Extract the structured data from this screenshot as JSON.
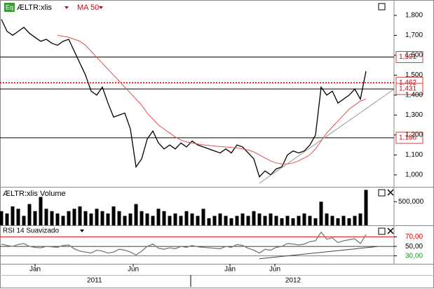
{
  "chart_data": [
    {
      "type": "line",
      "x": [
        0,
        1,
        2,
        3,
        4,
        5,
        6,
        7,
        8,
        9,
        10,
        11,
        12,
        13,
        14,
        15,
        16,
        17,
        18,
        19,
        20,
        21,
        22,
        23,
        24,
        25,
        26,
        27,
        28,
        29,
        30,
        31,
        32,
        33,
        34,
        35,
        36,
        37,
        38,
        39,
        40,
        41,
        42,
        43,
        44,
        45,
        46,
        47,
        48,
        49,
        50,
        51,
        52,
        53,
        54,
        55,
        56,
        57,
        58,
        59,
        60,
        61,
        62,
        63,
        64,
        65
      ],
      "xlim": [
        0,
        70
      ],
      "series": [
        {
          "name": "ÆLTR:xlis",
          "color": "#000000",
          "values": [
            1780,
            1720,
            1700,
            1720,
            1740,
            1710,
            1690,
            1670,
            1680,
            1660,
            1650,
            1670,
            1680,
            1620,
            1560,
            1500,
            1420,
            1400,
            1440,
            1360,
            1290,
            1300,
            1310,
            1230,
            1040,
            1080,
            1180,
            1220,
            1160,
            1130,
            1150,
            1130,
            1160,
            1140,
            1170,
            1150,
            1140,
            1130,
            1120,
            1110,
            1130,
            1110,
            1150,
            1140,
            1110,
            1080,
            990,
            1020,
            1000,
            1030,
            1040,
            1100,
            1120,
            1110,
            1120,
            1150,
            1200,
            1440,
            1400,
            1420,
            1360,
            1380,
            1400,
            1430,
            1380,
            1520
          ]
        },
        {
          "name": "MA 50",
          "color": "#e05050",
          "values": [
            null,
            null,
            null,
            null,
            null,
            null,
            null,
            null,
            null,
            null,
            1700,
            1695,
            1690,
            1680,
            1670,
            1650,
            1620,
            1590,
            1560,
            1530,
            1500,
            1470,
            1440,
            1410,
            1380,
            1350,
            1310,
            1280,
            1250,
            1230,
            1210,
            1190,
            1175,
            1165,
            1160,
            1155,
            1150,
            1148,
            1145,
            1142,
            1140,
            1138,
            1135,
            1130,
            1125,
            1115,
            1100,
            1085,
            1070,
            1060,
            1055,
            1055,
            1060,
            1070,
            1085,
            1100,
            1130,
            1170,
            1210,
            1240,
            1270,
            1300,
            1330,
            1350,
            1370,
            1380
          ]
        }
      ],
      "ylim": [
        940,
        1870
      ],
      "yticks": [
        {
          "value": 1000,
          "label": "1,000"
        },
        {
          "value": 1100,
          "label": "1,100"
        },
        {
          "value": 1200,
          "label": "1,200"
        },
        {
          "value": 1300,
          "label": "1,300"
        },
        {
          "value": 1400,
          "label": "1,400"
        },
        {
          "value": 1500,
          "label": "1,500"
        },
        {
          "value": 1600,
          "label": "1,600"
        },
        {
          "value": 1700,
          "label": "1,700"
        },
        {
          "value": 1800,
          "label": "1,800"
        }
      ],
      "levels": [
        {
          "value": 1591,
          "label": "1,591",
          "color": "#000000",
          "style": "solid"
        },
        {
          "value": 1462,
          "label": "1,462",
          "color": "#dd0000",
          "style": "dotted"
        },
        {
          "value": 1431,
          "label": "1,431",
          "color": "#000000",
          "style": "solid"
        },
        {
          "value": 1186,
          "label": "1,186",
          "color": "#000000",
          "style": "solid"
        }
      ],
      "trendline": {
        "x": [
          46,
          70
        ],
        "values": [
          958,
          1430
        ],
        "color": "#999999"
      }
    },
    {
      "type": "bar",
      "title": "ÆLTR:xlis Volume",
      "color": "#000000",
      "values": [
        300000,
        250000,
        400000,
        350000,
        200000,
        450000,
        300000,
        600000,
        350000,
        300000,
        250000,
        200000,
        300000,
        350000,
        400000,
        300000,
        250000,
        350000,
        300000,
        250000,
        400000,
        300000,
        200000,
        250000,
        450000,
        300000,
        250000,
        200000,
        350000,
        300000,
        200000,
        250000,
        200000,
        300000,
        250000,
        200000,
        350000,
        150000,
        200000,
        250000,
        200000,
        150000,
        200000,
        250000,
        200000,
        300000,
        250000,
        200000,
        250000,
        200000,
        150000,
        200000,
        150000,
        200000,
        250000,
        200000,
        150000,
        500000,
        250000,
        200000,
        150000,
        200000,
        150000,
        200000,
        250000,
        750000
      ],
      "ylim": [
        0,
        800000
      ],
      "yticks": [
        {
          "value": 500000,
          "label": "500,000"
        }
      ]
    },
    {
      "type": "line",
      "series": [
        {
          "name": "RSI 14 Suavizado",
          "color": "#777777",
          "values": [
            55,
            52,
            50,
            54,
            56,
            50,
            48,
            47,
            50,
            49,
            48,
            52,
            53,
            45,
            40,
            38,
            36,
            42,
            40,
            36,
            38,
            44,
            42,
            38,
            32,
            40,
            50,
            55,
            46,
            44,
            47,
            45,
            50,
            48,
            52,
            49,
            48,
            47,
            46,
            45,
            50,
            48,
            54,
            52,
            46,
            42,
            36,
            44,
            42,
            48,
            50,
            56,
            55,
            53,
            55,
            60,
            62,
            80,
            65,
            68,
            58,
            62,
            64,
            66,
            56,
            75
          ]
        }
      ],
      "ylim": [
        0,
        90
      ],
      "yticks": [
        {
          "value": 30,
          "label": "30,00",
          "color": "#229922"
        },
        {
          "value": 50,
          "label": "50,00",
          "color": "#000000"
        },
        {
          "value": 70,
          "label": "70,00",
          "color": "#dd0000"
        }
      ],
      "trendline": {
        "x": [
          46,
          67.25
        ],
        "values": [
          24,
          50
        ],
        "color": "#444444"
      },
      "xticks": [
        {
          "value": 6,
          "label": "Jan"
        },
        {
          "value": 23.5,
          "label": "Jun"
        },
        {
          "value": 40.75,
          "label": "Jan"
        },
        {
          "value": 48.75,
          "label": "Jun"
        }
      ],
      "year_ticks": [
        {
          "value": 16.6,
          "label": "2011"
        },
        {
          "value": 52,
          "label": "2012"
        }
      ],
      "year_bounds": [
        33.75
      ]
    }
  ]
}
